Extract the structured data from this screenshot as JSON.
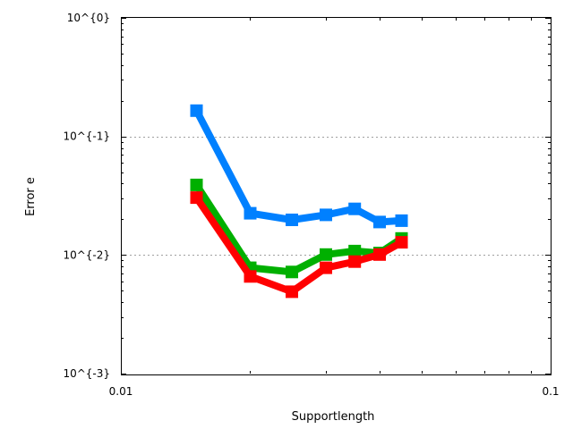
{
  "chart_data": {
    "type": "line",
    "title": "",
    "xlabel": "Supportlength",
    "ylabel": "Error e",
    "xscale": "log",
    "yscale": "log",
    "xlim": [
      0.01,
      0.1
    ],
    "ylim": [
      0.001,
      1
    ],
    "x_tick_labels": [
      "0.01",
      "0.1"
    ],
    "y_tick_labels": [
      "10^{0}",
      "10^{-1}",
      "10^{-2}",
      "10^{-3}"
    ],
    "grid": "horizontal dotted at major y ticks",
    "legend": "none",
    "x": [
      0.015,
      0.02,
      0.025,
      0.03,
      0.035,
      0.04,
      0.045
    ],
    "series": [
      {
        "color": "#0080ff",
        "marker": "square",
        "values": [
          0.165,
          0.0225,
          0.0198,
          0.0218,
          0.0245,
          0.019,
          0.0195
        ]
      },
      {
        "color": "#00b000",
        "marker": "square",
        "values": [
          0.039,
          0.0078,
          0.0072,
          0.0101,
          0.0108,
          0.0104,
          0.0138
        ]
      },
      {
        "color": "#ff0000",
        "marker": "square",
        "values": [
          0.0305,
          0.0066,
          0.0049,
          0.0078,
          0.0088,
          0.0101,
          0.0128
        ]
      }
    ]
  }
}
